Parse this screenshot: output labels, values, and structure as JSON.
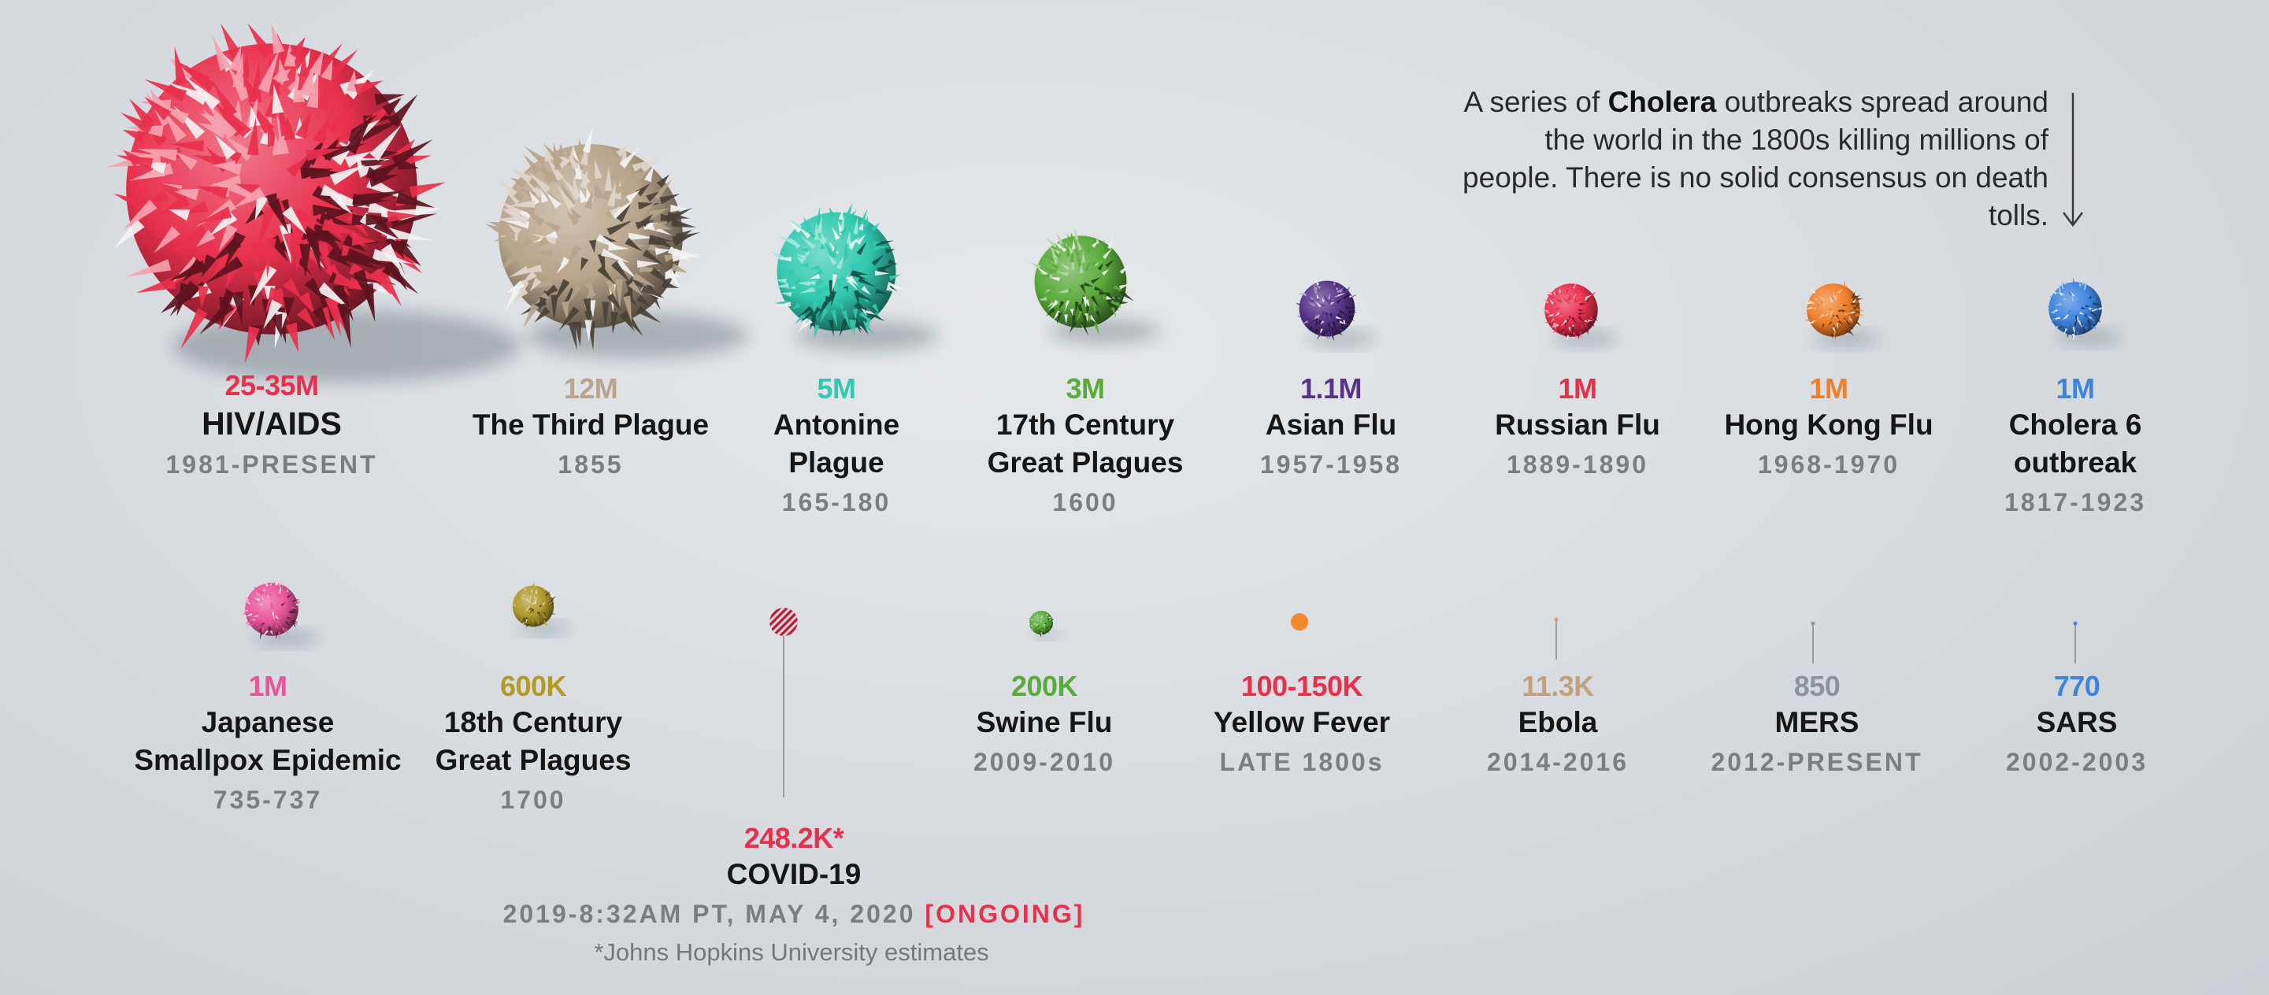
{
  "chart_data": {
    "type": "bubble",
    "unit": "deaths",
    "items": [
      {
        "name_lines": [
          "HIV/AIDS"
        ],
        "value_label": "25-35M",
        "value_million": 30,
        "years": "1981-PRESENT",
        "color": "#e8304d",
        "pattern": "spiky"
      },
      {
        "name_lines": [
          "The Third Plague"
        ],
        "value_label": "12M",
        "value_million": 12,
        "years": "1855",
        "color": "#b9a48c",
        "pattern": "spiky"
      },
      {
        "name_lines": [
          "Antonine",
          "Plague"
        ],
        "value_label": "5M",
        "value_million": 5,
        "years": "165-180",
        "color": "#32c9b0",
        "pattern": "spiky"
      },
      {
        "name_lines": [
          "17th Century",
          "Great Plagues"
        ],
        "value_label": "3M",
        "value_million": 3,
        "years": "1600",
        "color": "#5bab3b",
        "pattern": "spiky"
      },
      {
        "name_lines": [
          "Asian Flu"
        ],
        "value_label": "1.1M",
        "value_million": 1.1,
        "years": "1957-1958",
        "color": "#57348a",
        "pattern": "spiky"
      },
      {
        "name_lines": [
          "Russian Flu"
        ],
        "value_label": "1M",
        "value_million": 1,
        "years": "1889-1890",
        "color": "#e8304d",
        "pattern": "spiky"
      },
      {
        "name_lines": [
          "Hong Kong Flu"
        ],
        "value_label": "1M",
        "value_million": 1,
        "years": "1968-1970",
        "color": "#f07f2a",
        "pattern": "spiky"
      },
      {
        "name_lines": [
          "Cholera 6",
          "outbreak"
        ],
        "value_label": "1M",
        "value_million": 1,
        "years": "1817-1923",
        "color": "#3e84de",
        "pattern": "spiky"
      },
      {
        "name_lines": [
          "Japanese",
          "Smallpox Epidemic"
        ],
        "value_label": "1M",
        "value_million": 1,
        "years": "735-737",
        "color": "#e8559a",
        "pattern": "spiky"
      },
      {
        "name_lines": [
          "18th Century",
          "Great Plagues"
        ],
        "value_label": "600K",
        "value_million": 0.6,
        "years": "1700",
        "color": "#b19a2c",
        "pattern": "spiky"
      },
      {
        "name_lines": [
          "COVID-19"
        ],
        "value_label": "248.2K*",
        "value_million": 0.2482,
        "years": "2019-8:32AM PT, MAY 4, 2020",
        "years_suffix": "[ONGOING]",
        "color": "#e8304d",
        "pattern": "striped"
      },
      {
        "name_lines": [
          "Swine Flu"
        ],
        "value_label": "200K",
        "value_million": 0.2,
        "years": "2009-2010",
        "color": "#5bab3b",
        "pattern": "spiky"
      },
      {
        "name_lines": [
          "Yellow Fever"
        ],
        "value_label": "100-150K",
        "value_million": 0.125,
        "years": "LATE 1800s",
        "color": "#e8304d",
        "pattern": "dot"
      },
      {
        "name_lines": [
          "Ebola"
        ],
        "value_label": "11.3K",
        "value_million": 0.0113,
        "years": "2014-2016",
        "color": "#c2a27d",
        "pattern": "line"
      },
      {
        "name_lines": [
          "MERS"
        ],
        "value_label": "850",
        "value_million": 0.00085,
        "years": "2012-PRESENT",
        "color": "#8a94a0",
        "pattern": "line"
      },
      {
        "name_lines": [
          "SARS"
        ],
        "value_label": "770",
        "value_million": 0.00077,
        "years": "2002-2003",
        "color": "#3e84de",
        "pattern": "line"
      }
    ],
    "footnote": "*Johns Hopkins University estimates",
    "annotation": {
      "before": "A series of ",
      "bold": "Cholera",
      "after": " outbreaks spread around the world in the 1800s killing millions of people. There is no solid consensus on death tolls."
    }
  }
}
